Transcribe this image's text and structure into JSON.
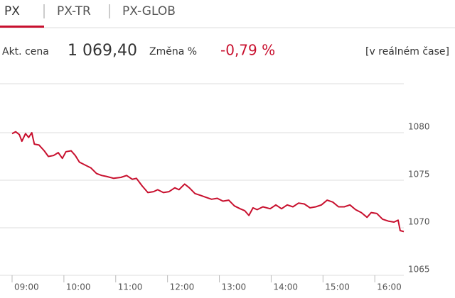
{
  "tabs": [
    "PX",
    "PX-TR",
    "PX-GLOB"
  ],
  "quote": {
    "price_label": "Akt. cena",
    "price": "1 069,40",
    "change_label": "Změna %",
    "change": "-0,79 %",
    "realtime": "[v reálném čase]"
  },
  "chart_data": {
    "type": "line",
    "color": "#c8102e",
    "grid": true,
    "xlim": [
      9,
      16.56
    ],
    "ylim": [
      1065,
      1085
    ],
    "xticks": [
      {
        "value": 9,
        "label": "09:00"
      },
      {
        "value": 10,
        "label": "10:00"
      },
      {
        "value": 11,
        "label": "11:00"
      },
      {
        "value": 12,
        "label": "12:00"
      },
      {
        "value": 13,
        "label": "13:00"
      },
      {
        "value": 14,
        "label": "14:00"
      },
      {
        "value": 15,
        "label": "15:00"
      },
      {
        "value": 16,
        "label": "16:00"
      }
    ],
    "yticks": [
      1065,
      1070,
      1075,
      1080
    ],
    "x": [
      9.0,
      9.07,
      9.14,
      9.19,
      9.26,
      9.32,
      9.38,
      9.43,
      9.52,
      9.62,
      9.7,
      9.8,
      9.89,
      9.97,
      10.04,
      10.14,
      10.22,
      10.3,
      10.41,
      10.52,
      10.63,
      10.73,
      10.82,
      10.96,
      11.1,
      11.21,
      11.32,
      11.4,
      11.51,
      11.62,
      11.73,
      11.81,
      11.92,
      12.03,
      12.14,
      12.22,
      12.33,
      12.42,
      12.53,
      12.64,
      12.74,
      12.85,
      12.96,
      13.07,
      13.18,
      13.29,
      13.4,
      13.49,
      13.57,
      13.65,
      13.73,
      13.84,
      13.98,
      14.09,
      14.2,
      14.31,
      14.42,
      14.53,
      14.64,
      14.75,
      14.86,
      14.97,
      15.08,
      15.19,
      15.3,
      15.41,
      15.52,
      15.63,
      15.74,
      15.85,
      15.93,
      16.04,
      16.15,
      16.26,
      16.37,
      16.45,
      16.49,
      16.56
    ],
    "values": [
      1079.9,
      1080.1,
      1079.8,
      1079.1,
      1079.9,
      1079.5,
      1080,
      1078.8,
      1078.7,
      1078.1,
      1077.5,
      1077.6,
      1077.9,
      1077.3,
      1078,
      1078.1,
      1077.6,
      1076.9,
      1076.6,
      1076.3,
      1075.7,
      1075.5,
      1075.4,
      1075.2,
      1075.3,
      1075.5,
      1075.1,
      1075.2,
      1074.4,
      1073.7,
      1073.8,
      1074,
      1073.7,
      1073.8,
      1074.2,
      1074,
      1074.6,
      1074.2,
      1073.6,
      1073.4,
      1073.2,
      1073,
      1073.1,
      1072.8,
      1072.9,
      1072.3,
      1072,
      1071.8,
      1071.3,
      1072.1,
      1071.9,
      1072.2,
      1072,
      1072.4,
      1072,
      1072.4,
      1072.2,
      1072.6,
      1072.5,
      1072.1,
      1072.2,
      1072.4,
      1072.9,
      1072.7,
      1072.2,
      1072.2,
      1072.4,
      1071.9,
      1071.6,
      1071.1,
      1071.6,
      1071.5,
      1070.9,
      1070.7,
      1070.6,
      1070.8,
      1069.7,
      1069.6
    ]
  }
}
